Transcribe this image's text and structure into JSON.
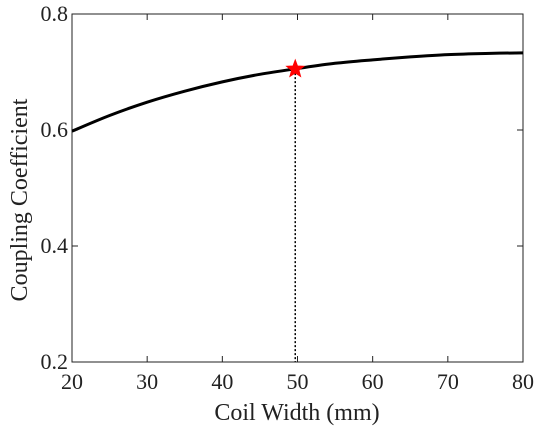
{
  "chart_data": {
    "type": "line",
    "title": "",
    "xlabel": "Coil Width (mm)",
    "ylabel": "Coupling Coefficient",
    "xlim": [
      20,
      80
    ],
    "ylim": [
      0.2,
      0.8
    ],
    "xticks": [
      20,
      30,
      40,
      50,
      60,
      70,
      80
    ],
    "yticks": [
      0.2,
      0.4,
      0.6,
      0.8
    ],
    "xtick_labels": [
      "20",
      "30",
      "40",
      "50",
      "60",
      "70",
      "80"
    ],
    "ytick_labels": [
      "0.2",
      "0.4",
      "0.6",
      "0.8"
    ],
    "grid": false,
    "series": [
      {
        "color": "#000000",
        "x": [
          20,
          25,
          30,
          35,
          40,
          45,
          50,
          55,
          60,
          65,
          70,
          75,
          80
        ],
        "y": [
          0.598,
          0.625,
          0.648,
          0.667,
          0.683,
          0.696,
          0.706,
          0.715,
          0.721,
          0.726,
          0.73,
          0.732,
          0.733
        ]
      }
    ],
    "marker": {
      "shape": "star",
      "color": "#ff0000",
      "x": 49.7,
      "y": 0.705,
      "dropline_style": "dotted"
    }
  }
}
